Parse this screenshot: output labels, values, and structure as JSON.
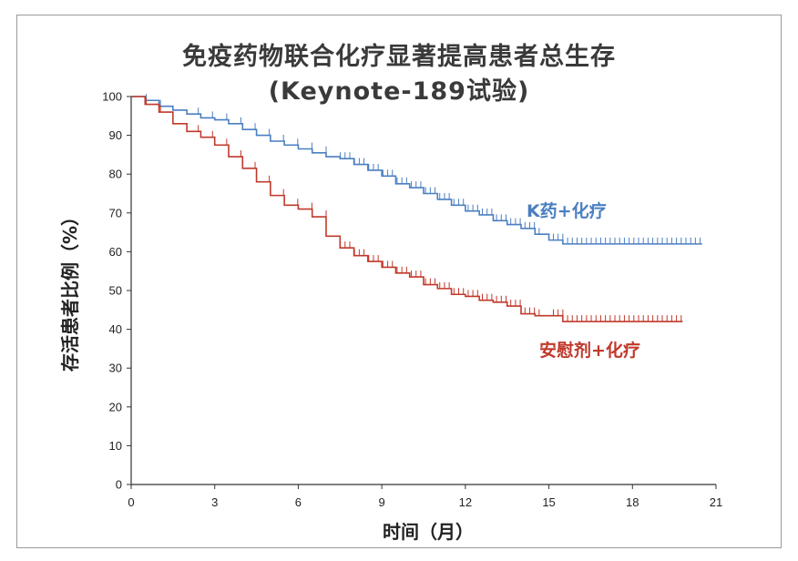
{
  "chart_data": {
    "type": "line",
    "title": "免疫药物联合化疗显著提高患者总生存",
    "subtitle": "(Keynote-189试验)",
    "xlabel": "时间（月）",
    "ylabel": "存活患者比例（%）",
    "xlim": [
      0,
      21
    ],
    "ylim": [
      0,
      100
    ],
    "x_ticks": [
      0,
      3,
      6,
      9,
      12,
      15,
      18,
      21
    ],
    "y_ticks": [
      0,
      10,
      20,
      30,
      40,
      50,
      60,
      70,
      80,
      90,
      100
    ],
    "grid": false,
    "series": [
      {
        "name": "K药+化疗",
        "color": "#4a7fc1",
        "x": [
          0,
          0.5,
          1,
          1.5,
          2,
          2.5,
          3,
          3.5,
          4,
          4.5,
          5,
          5.5,
          6,
          6.5,
          7,
          7.5,
          8,
          8.5,
          9,
          9.5,
          10,
          10.5,
          11,
          11.5,
          12,
          12.5,
          13,
          13.5,
          14,
          14.5,
          15,
          15.5,
          16,
          17,
          18,
          19,
          20,
          20.5
        ],
        "y": [
          100,
          99,
          97.5,
          96.5,
          95.5,
          94.5,
          94,
          93,
          91.5,
          90,
          88.5,
          87.5,
          86.5,
          85.5,
          84.5,
          84,
          82.5,
          81,
          79.5,
          77.5,
          76.5,
          75,
          73.5,
          72,
          70.5,
          69.5,
          68,
          67,
          66,
          64.5,
          63,
          62,
          62,
          62,
          62,
          62,
          62,
          62
        ]
      },
      {
        "name": "安慰剂+化疗",
        "color": "#c0392b",
        "x": [
          0,
          0.5,
          1,
          1.5,
          2,
          2.5,
          3,
          3.5,
          4,
          4.5,
          5,
          5.5,
          6,
          6.5,
          7,
          7.5,
          8,
          8.5,
          9,
          9.5,
          10,
          10.5,
          11,
          11.5,
          12,
          12.5,
          13,
          13.5,
          14,
          14.5,
          15,
          15.5,
          16,
          17,
          18,
          19,
          19.8
        ],
        "y": [
          100,
          98,
          96,
          93,
          91,
          89.5,
          87.5,
          84.5,
          81.5,
          78,
          74.5,
          72,
          71,
          69,
          64,
          61,
          59,
          57.5,
          56,
          54.5,
          53.5,
          51.5,
          50.5,
          49,
          48.5,
          47.5,
          47,
          46,
          44,
          43.5,
          43.5,
          42,
          42,
          42,
          42,
          42,
          42
        ]
      }
    ]
  }
}
